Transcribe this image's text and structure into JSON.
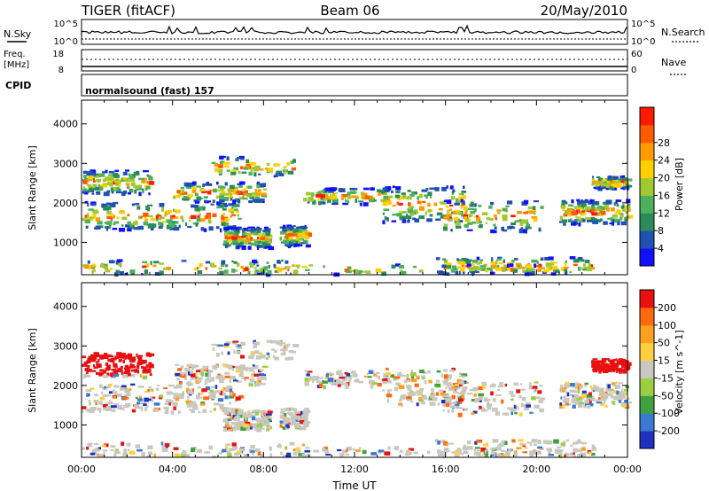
{
  "header": {
    "radar": "TIGER (fitACF)",
    "beam": "Beam 06",
    "date": "20/May/2010"
  },
  "top_panels": {
    "nsky_label": "N.Sky",
    "nsearch_label": "N.Search",
    "count_ticks": [
      "10^5",
      "10^0"
    ],
    "freq_label": "Freq.",
    "freq_unit": "[MHz]",
    "freq_ticks": [
      "18",
      "8"
    ],
    "nave_label": "Nave",
    "nave_ticks": [
      "60",
      "0"
    ],
    "cpid_label": "CPID",
    "cpid_value": "normalsound (fast) 157"
  },
  "chart_data": [
    {
      "type": "heatmap",
      "quantity": "Power",
      "ylabel": "Slant Range [km]",
      "xlabel": "",
      "ylim": [
        180,
        4600
      ],
      "xlim_hours": [
        0,
        24
      ],
      "y_ticks": [
        "1000",
        "2000",
        "3000",
        "4000"
      ],
      "colorbar": {
        "label": "Power [dB]",
        "ticks": [
          "4",
          "8",
          "12",
          "16",
          "20",
          "24",
          "28"
        ],
        "colors": [
          "#1010ff",
          "#2050b0",
          "#2a8a5a",
          "#4db05a",
          "#a0c830",
          "#ffd000",
          "#ff9a00",
          "#ff5a00",
          "#ff1a00"
        ]
      }
    },
    {
      "type": "heatmap",
      "quantity": "Velocity",
      "ylabel": "Slant Range [km]",
      "xlabel": "Time UT",
      "ylim": [
        180,
        4600
      ],
      "xlim_hours": [
        0,
        24
      ],
      "y_ticks": [
        "1000",
        "2000",
        "3000",
        "4000"
      ],
      "x_ticks": [
        "00:00",
        "04:00",
        "08:00",
        "12:00",
        "16:00",
        "20:00",
        "00:00"
      ],
      "colorbar": {
        "label": "Velocity [m s^-1]",
        "ticks": [
          "200",
          "100",
          "50",
          "15",
          "-15",
          "-50",
          "-100",
          "-200"
        ],
        "colors": [
          "#2030c0",
          "#3a7ad0",
          "#40a040",
          "#9ad040",
          "#c8c8c0",
          "#ffd040",
          "#ffa020",
          "#ff6a10",
          "#e81010"
        ]
      }
    }
  ]
}
